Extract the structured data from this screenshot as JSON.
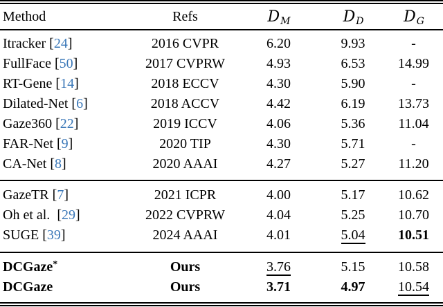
{
  "colors": {
    "citation": "#3b78b8",
    "text": "#000000",
    "background": "#ffffff"
  },
  "table": {
    "header": {
      "method": "Method",
      "refs": "Refs",
      "metrics": [
        {
          "base": "D",
          "sub": "M"
        },
        {
          "base": "D",
          "sub": "D"
        },
        {
          "base": "D",
          "sub": "G"
        }
      ]
    },
    "sections": [
      {
        "rows": [
          {
            "method": "Itracker",
            "cite": "24",
            "refs": "2016 CVPR",
            "values": [
              {
                "v": "6.20"
              },
              {
                "v": "9.93"
              },
              {
                "v": "-"
              }
            ]
          },
          {
            "method": "FullFace",
            "cite": "50",
            "refs": "2017 CVPRW",
            "values": [
              {
                "v": "4.93"
              },
              {
                "v": "6.53"
              },
              {
                "v": "14.99"
              }
            ]
          },
          {
            "method": "RT-Gene",
            "cite": "14",
            "refs": "2018 ECCV",
            "values": [
              {
                "v": "4.30"
              },
              {
                "v": "5.90"
              },
              {
                "v": "-"
              }
            ]
          },
          {
            "method": "Dilated-Net",
            "cite": "6",
            "refs": "2018 ACCV",
            "values": [
              {
                "v": "4.42"
              },
              {
                "v": "6.19"
              },
              {
                "v": "13.73"
              }
            ]
          },
          {
            "method": "Gaze360",
            "cite": "22",
            "refs": "2019 ICCV",
            "values": [
              {
                "v": "4.06"
              },
              {
                "v": "5.36"
              },
              {
                "v": "11.04"
              }
            ]
          },
          {
            "method": "FAR-Net",
            "cite": "9",
            "refs": "2020 TIP",
            "values": [
              {
                "v": "4.30"
              },
              {
                "v": "5.71"
              },
              {
                "v": "-"
              }
            ]
          },
          {
            "method": "CA-Net",
            "cite": "8",
            "refs": "2020 AAAI",
            "values": [
              {
                "v": "4.27"
              },
              {
                "v": "5.27"
              },
              {
                "v": "11.20"
              }
            ]
          }
        ]
      },
      {
        "rows": [
          {
            "method": "GazeTR",
            "cite": "7",
            "refs": "2021 ICPR",
            "values": [
              {
                "v": "4.00"
              },
              {
                "v": "5.17"
              },
              {
                "v": "10.62"
              }
            ]
          },
          {
            "method": "Oh et al.",
            "cite": "29",
            "cite_gap": true,
            "refs": "2022 CVPRW",
            "values": [
              {
                "v": "4.04"
              },
              {
                "v": "5.25"
              },
              {
                "v": "10.70"
              }
            ]
          },
          {
            "method": "SUGE",
            "cite": "39",
            "refs": "2024 AAAI",
            "values": [
              {
                "v": "4.01"
              },
              {
                "v": "5.04",
                "s": "u"
              },
              {
                "v": "10.51",
                "s": "b"
              }
            ]
          }
        ]
      },
      {
        "rows": [
          {
            "method": "DCGaze",
            "method_sup": "*",
            "method_bold": true,
            "refs": "Ours",
            "refs_bold": true,
            "values": [
              {
                "v": "3.76",
                "s": "u"
              },
              {
                "v": "5.15"
              },
              {
                "v": "10.58"
              }
            ]
          },
          {
            "method": "DCGaze",
            "method_bold": true,
            "refs": "Ours",
            "refs_bold": true,
            "values": [
              {
                "v": "3.71",
                "s": "b"
              },
              {
                "v": "4.97",
                "s": "b"
              },
              {
                "v": "10.54",
                "s": "u"
              }
            ]
          }
        ]
      }
    ]
  }
}
